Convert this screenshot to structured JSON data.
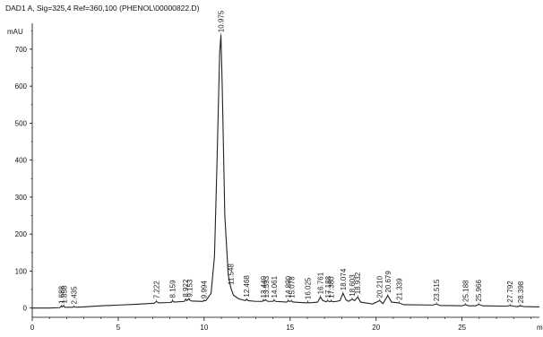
{
  "chart_data": {
    "type": "line",
    "title": "DAD1 A, Sig=325,4 Ref=360,100 (PHENOL\\00000822.D)",
    "ylabel": "mAU",
    "xlabel": "m",
    "xlim": [
      0,
      29.5
    ],
    "ylim": [
      -25,
      770
    ],
    "xticks": [
      0,
      5,
      10,
      15,
      20,
      25
    ],
    "yticks": [
      0,
      100,
      200,
      300,
      400,
      500,
      600,
      700
    ],
    "grid": false,
    "series": [
      {
        "x": [
          0,
          1,
          1.6,
          1.69,
          1.73,
          1.78,
          1.9,
          2.35,
          2.44,
          2.55,
          3,
          4,
          5,
          6,
          7.1,
          7.22,
          7.35,
          8,
          8.1,
          8.16,
          8.25,
          8.85,
          8.92,
          9.0,
          9.1,
          9.15,
          9.25,
          9.9,
          9.99,
          10.1,
          10.4,
          10.6,
          10.75,
          10.9,
          10.975,
          11.05,
          11.2,
          11.4,
          11.548,
          11.7,
          12.0,
          12.4,
          12.47,
          12.55,
          13.0,
          13.4,
          13.44,
          13.5,
          13.59,
          13.7,
          14.0,
          14.06,
          14.15,
          14.8,
          14.89,
          14.95,
          15.07,
          15.2,
          16.0,
          16.025,
          16.1,
          16.6,
          16.761,
          16.9,
          17.1,
          17.188,
          17.3,
          17.4,
          17.5,
          17.7,
          17.9,
          18.074,
          18.25,
          18.4,
          18.603,
          18.75,
          18.932,
          19.1,
          19.8,
          20.21,
          20.4,
          20.679,
          20.9,
          21.339,
          21.6,
          23.3,
          23.515,
          23.7,
          25.0,
          25.188,
          25.4,
          25.8,
          25.966,
          26.2,
          27.6,
          27.792,
          28.0,
          28.2,
          28.398,
          28.6,
          29.5
        ],
        "y": [
          0,
          0,
          1,
          5,
          3,
          6,
          2,
          2,
          4,
          2,
          3,
          6,
          8,
          10,
          13,
          18,
          14,
          15,
          16,
          20,
          16,
          18,
          24,
          20,
          25,
          22,
          19,
          18,
          20,
          20,
          40,
          140,
          400,
          690,
          738,
          600,
          250,
          90,
          55,
          35,
          25,
          20,
          24,
          20,
          18,
          18,
          22,
          20,
          22,
          18,
          18,
          22,
          18,
          16,
          20,
          18,
          19,
          16,
          14,
          16,
          14,
          16,
          30,
          20,
          17,
          20,
          17,
          19,
          17,
          18,
          20,
          40,
          22,
          18,
          24,
          20,
          30,
          16,
          11,
          20,
          12,
          34,
          16,
          14,
          9,
          8,
          11,
          7,
          6,
          9,
          6,
          6,
          10,
          6,
          5,
          7,
          5,
          4,
          6,
          4,
          3
        ]
      }
    ],
    "peak_labels": [
      "1.688",
      "1.858",
      "2.435",
      "7.222",
      "8.159",
      "8.922",
      "9.153",
      "9.994",
      "10.975",
      "11.548",
      "12.468",
      "13.440",
      "13.593",
      "14.061",
      "14.890",
      "15.078",
      "16.025",
      "16.761",
      "17.188",
      "17.380",
      "18.074",
      "18.603",
      "18.932",
      "20.210",
      "20.679",
      "21.339",
      "23.515",
      "25.188",
      "25.966",
      "27.792",
      "28.398"
    ],
    "peak_positions": [
      1.688,
      1.858,
      2.435,
      7.222,
      8.159,
      8.922,
      9.153,
      9.994,
      10.975,
      11.548,
      12.468,
      13.44,
      13.593,
      14.061,
      14.89,
      15.078,
      16.025,
      16.761,
      17.188,
      17.38,
      18.074,
      18.603,
      18.932,
      20.21,
      20.679,
      21.339,
      23.515,
      25.188,
      25.966,
      27.792,
      28.398
    ],
    "peak_heights": [
      4,
      5,
      3,
      18,
      20,
      22,
      22,
      18,
      738,
      55,
      22,
      20,
      20,
      20,
      20,
      19,
      16,
      30,
      20,
      19,
      40,
      24,
      30,
      20,
      34,
      14,
      11,
      9,
      10,
      7,
      6
    ]
  }
}
